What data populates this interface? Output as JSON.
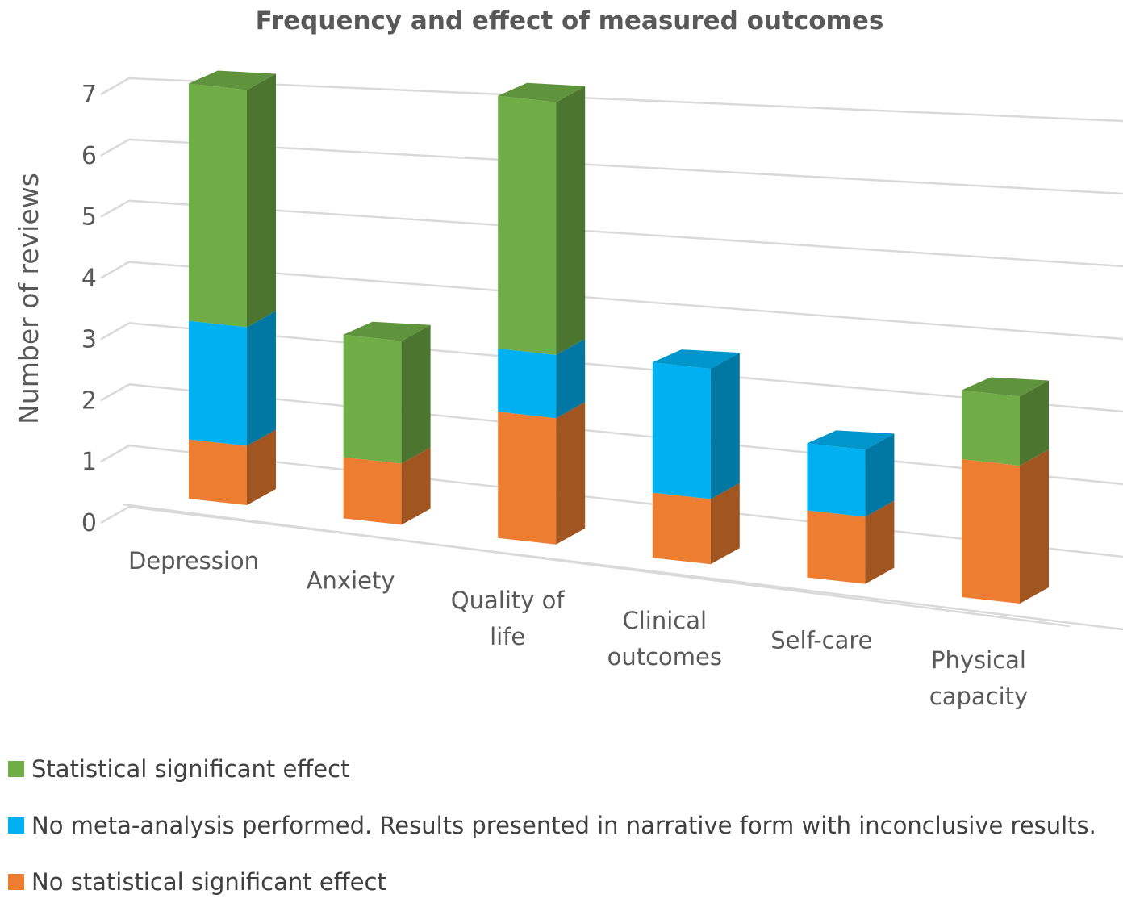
{
  "chart_data": {
    "type": "bar",
    "subtype": "stacked-3d-column",
    "title": "Frequency and effect of measured outcomes",
    "xlabel": "",
    "ylabel": "Number of reviews",
    "ylim": [
      0,
      7
    ],
    "yticks": [
      0,
      1,
      2,
      3,
      4,
      5,
      6,
      7
    ],
    "grid": true,
    "legend_position": "bottom-left",
    "categories": [
      [
        "Depression"
      ],
      [
        "Anxiety"
      ],
      [
        "Quality of",
        "life"
      ],
      [
        "Clinical",
        "outcomes"
      ],
      [
        "Self-care"
      ],
      [
        "Physical",
        "capacity"
      ]
    ],
    "series": [
      {
        "name": "No statistical significant effect",
        "color": "#ed7d31",
        "values": [
          1,
          1,
          2,
          1,
          1,
          2
        ]
      },
      {
        "name": "No meta-analysis performed. Results presented in narrative form with inconclusive results.",
        "color": "#00b0f0",
        "values": [
          2,
          0,
          1,
          2,
          1,
          0
        ]
      },
      {
        "name": "Statistical significant effect",
        "color": "#70ad47",
        "values": [
          4,
          2,
          4,
          0,
          0,
          1
        ]
      }
    ],
    "legend_order": [
      2,
      1,
      0
    ]
  }
}
